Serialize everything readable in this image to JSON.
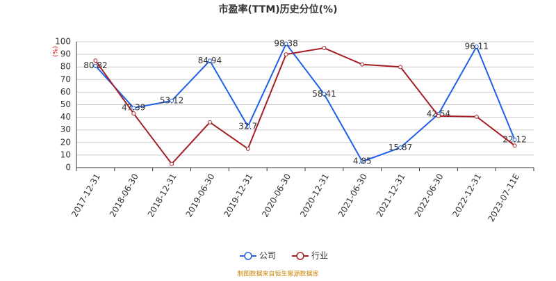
{
  "chart_data": {
    "type": "line",
    "title": "市盈率(TTM)历史分位(%)",
    "y_unit": "(%)",
    "source": "制图数据来自恒生聚源数据库",
    "categories": [
      "2017-12-31",
      "2018-06-30",
      "2018-12-31",
      "2019-06-30",
      "2019-12-31",
      "2020-06-30",
      "2020-12-31",
      "2021-06-30",
      "2021-12-31",
      "2022-06-30",
      "2022-12-31",
      "2023-07-11E"
    ],
    "series": [
      {
        "name": "公司",
        "color": "#1f5fe8",
        "values": [
          80.82,
          47.39,
          53.12,
          84.94,
          32.7,
          98.38,
          58.41,
          4.85,
          15.87,
          42.54,
          96.11,
          22.12
        ],
        "show_labels": true
      },
      {
        "name": "行业",
        "color": "#a31f24",
        "values": [
          85,
          43,
          3,
          36,
          15,
          90,
          95,
          82,
          80,
          41,
          40.5,
          17.5
        ],
        "show_labels": false
      }
    ],
    "ylim": [
      0,
      100
    ],
    "yticks": [
      0,
      10,
      20,
      30,
      40,
      50,
      60,
      70,
      80,
      90,
      100
    ],
    "grid": true
  }
}
